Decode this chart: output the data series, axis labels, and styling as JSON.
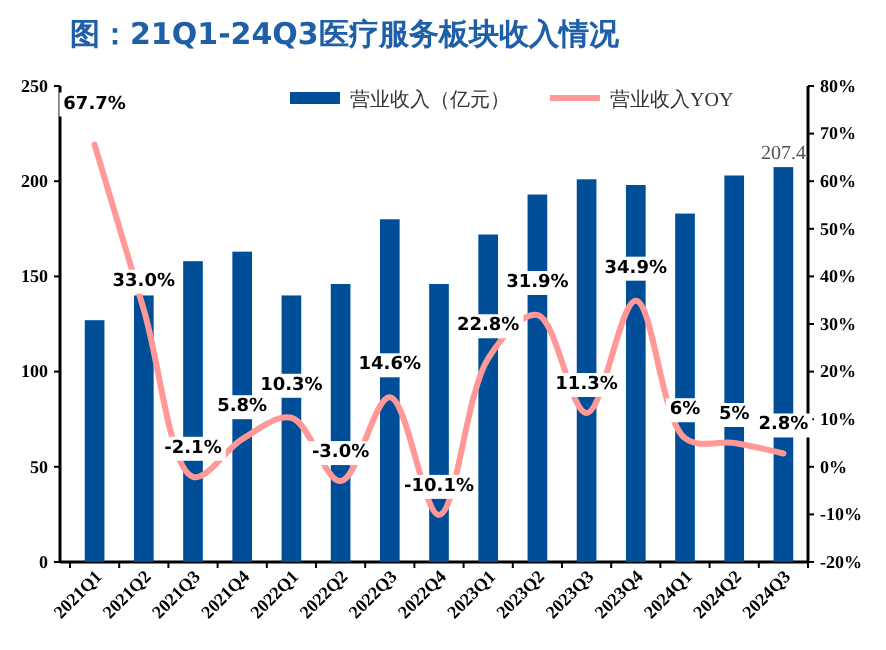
{
  "chart_data": {
    "type": "bar",
    "title": "图：21Q1-24Q3医疗服务板块收入情况",
    "categories": [
      "2021Q1",
      "2021Q2",
      "2021Q3",
      "2021Q4",
      "2022Q1",
      "2022Q2",
      "2022Q3",
      "2022Q4",
      "2023Q1",
      "2023Q2",
      "2023Q3",
      "2023Q4",
      "2024Q1",
      "2024Q2",
      "2024Q3"
    ],
    "series": [
      {
        "name": "营业收入（亿元）",
        "color": "#004e98",
        "values": [
          127,
          140,
          158,
          163,
          140,
          146,
          180,
          146,
          172,
          193,
          201,
          198,
          183,
          203,
          207.4
        ],
        "value_labels": [
          null,
          null,
          null,
          null,
          null,
          null,
          null,
          null,
          null,
          null,
          null,
          null,
          null,
          null,
          "207.4"
        ]
      },
      {
        "name": "营业收入YOY",
        "type": "line",
        "axis": "y2",
        "color": "#ff9896",
        "values": [
          67.7,
          33.0,
          -2.1,
          5.8,
          10.3,
          -3.0,
          14.6,
          -10.1,
          22.8,
          31.9,
          11.3,
          34.9,
          6,
          5,
          2.8
        ],
        "value_labels": [
          "67.7%",
          "33.0%",
          "-2.1%",
          "5.8%",
          "10.3%",
          "-3.0%",
          "14.6%",
          "-10.1%",
          "22.8%",
          "31.9%",
          "11.3%",
          "34.9%",
          "6%",
          "5%",
          "2.8%"
        ]
      }
    ],
    "ylim": [
      0,
      250
    ],
    "yticks": [
      0,
      50,
      100,
      150,
      200,
      250
    ],
    "y2lim": [
      -20,
      80
    ],
    "y2ticks": [
      {
        "value": 80,
        "label": "80%"
      },
      {
        "value": 70,
        "label": "70%"
      },
      {
        "value": 60,
        "label": "60%"
      },
      {
        "value": 50,
        "label": "50%"
      },
      {
        "value": 40,
        "label": "40%"
      },
      {
        "value": 30,
        "label": "30%"
      },
      {
        "value": 20,
        "label": "20%"
      },
      {
        "value": 10,
        "label": "10%"
      },
      {
        "value": 0,
        "label": "0%"
      },
      {
        "value": -10,
        "label": "-10%"
      },
      {
        "value": -20,
        "label": "-20%"
      }
    ],
    "legend": "top",
    "grid": false,
    "marker": "none",
    "line_style": "solid"
  }
}
